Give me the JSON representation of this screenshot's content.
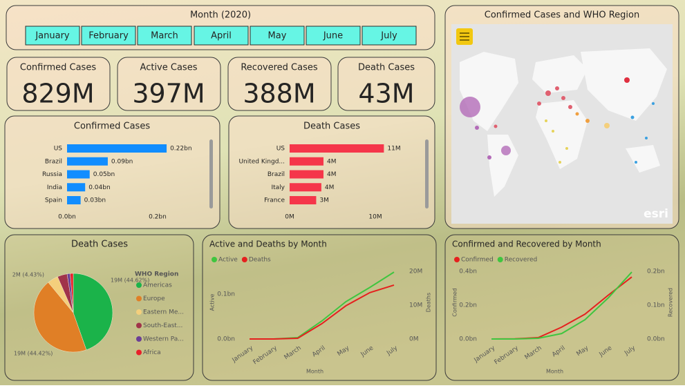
{
  "slicer": {
    "title": "Month (2020)",
    "items": [
      "January",
      "February",
      "March",
      "April",
      "May",
      "June",
      "July"
    ]
  },
  "cards": [
    {
      "label": "Confirmed Cases",
      "value": "829M"
    },
    {
      "label": "Active Cases",
      "value": "397M"
    },
    {
      "label": "Recovered Cases",
      "value": "388M"
    },
    {
      "label": "Death Cases",
      "value": "43M"
    }
  ],
  "chart_data": [
    {
      "type": "bar",
      "orientation": "horizontal",
      "title": "Confirmed Cases",
      "categories": [
        "US",
        "Brazil",
        "Russia",
        "India",
        "Spain"
      ],
      "values": [
        0.22,
        0.09,
        0.05,
        0.04,
        0.03
      ],
      "value_labels": [
        "0.22bn",
        "0.09bn",
        "0.05bn",
        "0.04bn",
        "0.03bn"
      ],
      "color": "#118dff",
      "xlim": [
        0,
        0.31
      ],
      "xticks": [
        {
          "value": 0,
          "label": "0.0bn"
        },
        {
          "value": 0.2,
          "label": "0.2bn"
        }
      ]
    },
    {
      "type": "bar",
      "orientation": "horizontal",
      "title": "Death Cases",
      "categories": [
        "US",
        "United Kingd...",
        "Brazil",
        "Italy",
        "France"
      ],
      "values": [
        11,
        3.95,
        3.95,
        3.7,
        3.1
      ],
      "value_labels": [
        "11M",
        "4M",
        "4M",
        "4M",
        "3M"
      ],
      "color": "#f5364a",
      "xlim": [
        0,
        15
      ],
      "xticks": [
        {
          "value": 0,
          "label": "0M"
        },
        {
          "value": 10,
          "label": "10M"
        }
      ]
    },
    {
      "type": "pie",
      "title": "Death Cases",
      "legend_title": "WHO Region",
      "categories": [
        "Americas",
        "Europe",
        "Eastern Me...",
        "South-East...",
        "Western Pa...",
        "Africa"
      ],
      "values": [
        44.62,
        44.42,
        4.43,
        4.0,
        1.3,
        1.23
      ],
      "value_labels": [
        "19M (44.62%)",
        "19M (44.42%)",
        "2M (4.43%)",
        null,
        null,
        null
      ],
      "colors": [
        "#1bb34a",
        "#e07f26",
        "#f4cf7c",
        "#a0334a",
        "#6b3f96",
        "#e8202a"
      ]
    },
    {
      "type": "line",
      "title": "Active and Deaths by Month",
      "categories": [
        "January",
        "February",
        "March",
        "April",
        "May",
        "June",
        "July"
      ],
      "series": [
        {
          "name": "Active",
          "color": "#3fc53f",
          "values": [
            0,
            0,
            0.003,
            0.04,
            0.083,
            0.115,
            0.149
          ]
        },
        {
          "name": "Deaths",
          "color": "#e5201e",
          "axis": "y2",
          "values": [
            0,
            0,
            0.2,
            4.5,
            9.8,
            13.7,
            15.9
          ]
        }
      ],
      "xlabel": "Month",
      "ylabel": "Active",
      "y2label": "Deaths",
      "ylim": [
        0,
        0.163
      ],
      "yticks": [
        {
          "value": 0,
          "label": "0.0bn"
        },
        {
          "value": 0.1,
          "label": "0.1bn"
        }
      ],
      "y2lim": [
        0,
        21.6
      ],
      "y2ticks": [
        {
          "value": 0,
          "label": "0M"
        },
        {
          "value": 10,
          "label": "10M"
        },
        {
          "value": 20,
          "label": "20M"
        }
      ]
    },
    {
      "type": "line",
      "title": "Confirmed and Recovered by Month",
      "categories": [
        "January",
        "February",
        "March",
        "April",
        "May",
        "June",
        "July"
      ],
      "series": [
        {
          "name": "Confirmed",
          "color": "#e5201e",
          "values": [
            0,
            0.001,
            0.008,
            0.07,
            0.147,
            0.26,
            0.367
          ]
        },
        {
          "name": "Recovered",
          "color": "#3fc53f",
          "axis": "y2",
          "values": [
            0,
            0,
            0.002,
            0.016,
            0.057,
            0.122,
            0.198
          ]
        }
      ],
      "xlabel": "Month",
      "ylabel": "Confirmed",
      "y2label": "Recovered",
      "ylim": [
        0,
        0.433
      ],
      "yticks": [
        {
          "value": 0,
          "label": "0.0bn"
        },
        {
          "value": 0.2,
          "label": "0.2bn"
        },
        {
          "value": 0.4,
          "label": "0.4bn"
        }
      ],
      "y2lim": [
        0,
        0.2165
      ],
      "y2ticks": [
        {
          "value": 0,
          "label": "0.0bn"
        },
        {
          "value": 0.1,
          "label": "0.1bn"
        },
        {
          "value": 0.2,
          "label": "0.2bn"
        }
      ]
    }
  ],
  "map": {
    "title": "Confirmed Cases and WHO Region",
    "attribution": "esri"
  }
}
